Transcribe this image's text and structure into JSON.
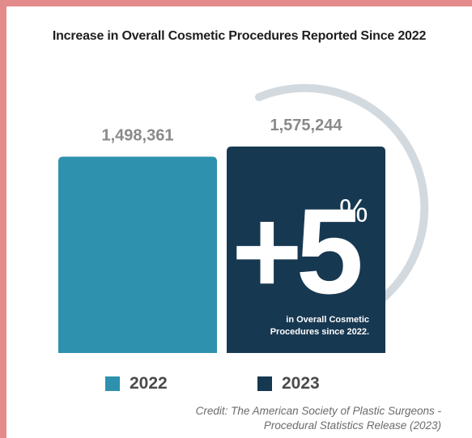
{
  "title": "Increase in Overall Cosmetic Procedures Reported Since 2022",
  "credit": [
    "Credit: The American Society of Plastic Surgeons -",
    "Procedural Statistics Release (2023)"
  ],
  "callout": {
    "big": "+5",
    "percent": "%",
    "caption_lines": [
      "in Overall Cosmetic",
      "Procedures since 2022."
    ]
  },
  "colors": {
    "bar_2022": "#2e91ad",
    "bar_2023": "#173851",
    "ring": "#d3dadf",
    "value_label": "#8a8a8a",
    "frame": "#e38b8b"
  },
  "chart_data": {
    "type": "bar",
    "categories": [
      "2022",
      "2023"
    ],
    "values": [
      1498361,
      1575244
    ],
    "value_labels": [
      "1,498,361",
      "1,575,244"
    ],
    "title": "Increase in Overall Cosmetic Procedures Reported Since 2022",
    "xlabel": "",
    "ylabel": "",
    "legend": [
      "2022",
      "2023"
    ],
    "legend_placement": "bottom",
    "grid": false
  }
}
